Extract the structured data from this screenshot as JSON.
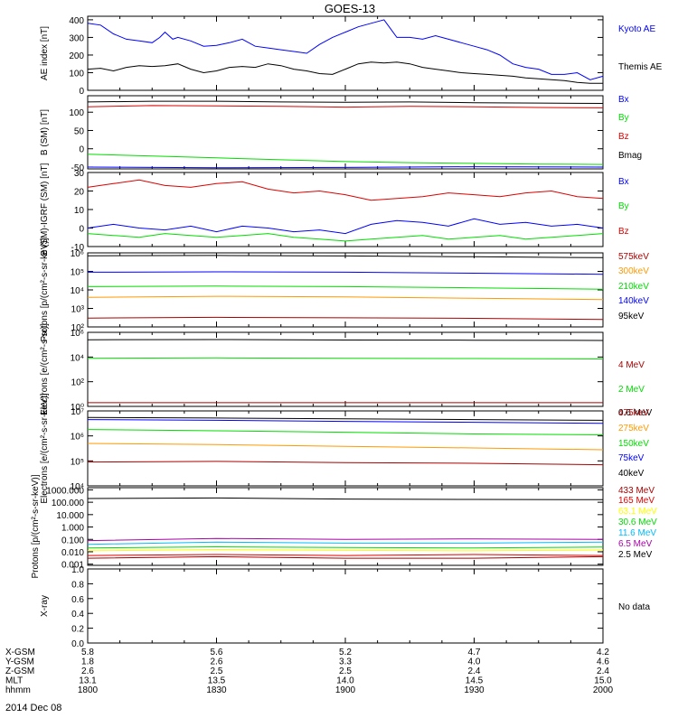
{
  "title": "GOES-13",
  "date_label": "2014 Dec 08",
  "colors": {
    "black": "#000000",
    "blue": "#0000ff",
    "green": "#00dd00",
    "red": "#dd0000",
    "orange": "#ff9900",
    "darkred": "#aa0000",
    "cyan": "#00bbff",
    "purple": "#aa00aa",
    "yellow": "#ffff00"
  },
  "ephemeris": {
    "rows": [
      {
        "label": "X-GSM",
        "values": [
          "5.8",
          "5.6",
          "5.2",
          "4.7",
          "4.2"
        ]
      },
      {
        "label": "Y-GSM",
        "values": [
          "1.8",
          "2.6",
          "3.3",
          "4.0",
          "4.6"
        ]
      },
      {
        "label": "Z-GSM",
        "values": [
          "2.6",
          "2.5",
          "2.5",
          "2.4",
          "2.4"
        ]
      },
      {
        "label": "MLT",
        "values": [
          "13.1",
          "13.5",
          "14.0",
          "14.5",
          "15.0"
        ]
      },
      {
        "label": "hhmm",
        "values": [
          "1800",
          "1830",
          "1900",
          "1930",
          "2000"
        ]
      }
    ]
  },
  "chart_data": [
    {
      "type": "line",
      "ylabel": "AE index [nT]",
      "ylim": [
        0,
        420
      ],
      "yticks": [
        "0",
        "100",
        "200",
        "300",
        "400"
      ],
      "ytick_values": [
        0,
        100,
        200,
        300,
        400
      ],
      "xlim": [
        1800,
        2000
      ],
      "series": [
        {
          "name": "Kyoto AE",
          "color": "blue",
          "x": [
            1800,
            1805,
            1810,
            1815,
            1820,
            1825,
            1828,
            1830,
            1833,
            1835,
            1840,
            1845,
            1850,
            1855,
            1860,
            1865,
            1870,
            1875,
            1880,
            1885,
            1890,
            1895,
            1900,
            1905,
            1910,
            1915,
            1918,
            1920,
            1925,
            1930,
            1935,
            1940,
            1945,
            1950,
            1955,
            1960,
            1965,
            1970,
            1975,
            1980,
            1985,
            1990,
            1995,
            2000
          ],
          "y": [
            380,
            370,
            320,
            290,
            280,
            270,
            300,
            330,
            290,
            300,
            280,
            250,
            255,
            270,
            290,
            250,
            240,
            230,
            220,
            210,
            260,
            300,
            330,
            360,
            380,
            400,
            340,
            300,
            300,
            290,
            310,
            290,
            270,
            250,
            230,
            200,
            150,
            130,
            120,
            90,
            90,
            100,
            60,
            80
          ]
        },
        {
          "name": "Themis AE",
          "color": "black",
          "x": [
            1800,
            1805,
            1810,
            1815,
            1820,
            1825,
            1830,
            1835,
            1840,
            1845,
            1850,
            1855,
            1860,
            1865,
            1870,
            1875,
            1880,
            1885,
            1890,
            1895,
            1900,
            1905,
            1910,
            1915,
            1920,
            1925,
            1930,
            1935,
            1940,
            1945,
            1950,
            1955,
            1960,
            1965,
            1970,
            1975,
            1980,
            1985,
            1990,
            1995,
            2000
          ],
          "y": [
            120,
            125,
            110,
            130,
            140,
            135,
            140,
            150,
            120,
            100,
            110,
            130,
            135,
            130,
            150,
            140,
            120,
            110,
            95,
            90,
            120,
            150,
            160,
            155,
            160,
            150,
            130,
            120,
            110,
            100,
            95,
            90,
            85,
            80,
            70,
            65,
            60,
            55,
            45,
            40,
            40
          ]
        }
      ]
    },
    {
      "type": "line",
      "ylabel": "B (SM) [nT]",
      "ylim": [
        -55,
        145
      ],
      "yticks": [
        "-50",
        "0",
        "50",
        "100"
      ],
      "ytick_values": [
        -50,
        0,
        50,
        100
      ],
      "xlim": [
        1800,
        2000
      ],
      "series": [
        {
          "name": "Bx",
          "color": "blue",
          "x": [
            1800,
            1850,
            1900,
            1950,
            2000
          ],
          "y": [
            -50,
            -52,
            -51,
            -49,
            -50
          ]
        },
        {
          "name": "By",
          "color": "green",
          "x": [
            1800,
            1825,
            1850,
            1875,
            1900,
            1925,
            1950,
            1975,
            2000
          ],
          "y": [
            -15,
            -20,
            -25,
            -30,
            -35,
            -38,
            -40,
            -42,
            -43
          ]
        },
        {
          "name": "Bz",
          "color": "red",
          "x": [
            1800,
            1825,
            1850,
            1875,
            1900,
            1925,
            1950,
            1975,
            2000
          ],
          "y": [
            115,
            118,
            117,
            116,
            114,
            116,
            115,
            113,
            112
          ]
        },
        {
          "name": "Bmag",
          "color": "black",
          "x": [
            1800,
            1825,
            1850,
            1875,
            1900,
            1925,
            1950,
            1975,
            2000
          ],
          "y": [
            128,
            130,
            130,
            128,
            127,
            128,
            126,
            125,
            124
          ]
        }
      ]
    },
    {
      "type": "line",
      "ylabel": "B (SM)-IGRF (SM) [nT]",
      "ylim": [
        -10,
        30
      ],
      "yticks": [
        "-10",
        "0",
        "10",
        "20",
        "30"
      ],
      "ytick_values": [
        -10,
        0,
        10,
        20,
        30
      ],
      "xlim": [
        1800,
        2000
      ],
      "series": [
        {
          "name": "Bx",
          "color": "blue",
          "x": [
            1800,
            1810,
            1820,
            1830,
            1840,
            1850,
            1860,
            1870,
            1880,
            1890,
            1900,
            1910,
            1920,
            1930,
            1940,
            1950,
            1960,
            1970,
            1980,
            1990,
            2000
          ],
          "y": [
            0,
            2,
            0,
            -1,
            1,
            -2,
            1,
            0,
            -2,
            -1,
            -3,
            2,
            4,
            3,
            1,
            5,
            2,
            3,
            1,
            2,
            0
          ]
        },
        {
          "name": "By",
          "color": "green",
          "x": [
            1800,
            1810,
            1820,
            1830,
            1840,
            1850,
            1860,
            1870,
            1880,
            1890,
            1900,
            1910,
            1920,
            1930,
            1940,
            1950,
            1960,
            1970,
            1980,
            1990,
            2000
          ],
          "y": [
            -3,
            -4,
            -5,
            -3,
            -4,
            -5,
            -4,
            -3,
            -5,
            -6,
            -7,
            -6,
            -5,
            -4,
            -6,
            -5,
            -4,
            -6,
            -5,
            -4,
            -3
          ]
        },
        {
          "name": "Bz",
          "color": "red",
          "x": [
            1800,
            1810,
            1820,
            1830,
            1840,
            1850,
            1860,
            1870,
            1880,
            1890,
            1900,
            1910,
            1920,
            1930,
            1940,
            1950,
            1960,
            1970,
            1980,
            1990,
            2000
          ],
          "y": [
            22,
            24,
            26,
            23,
            22,
            24,
            25,
            21,
            19,
            20,
            18,
            15,
            16,
            17,
            19,
            18,
            17,
            19,
            20,
            17,
            16
          ]
        }
      ]
    },
    {
      "type": "line",
      "ylabel": "Protons [p/(cm²-s-sr-keV)]",
      "yscale": "log",
      "ylim": [
        100,
        1000000
      ],
      "yticks": [
        "10²",
        "10³",
        "10⁴",
        "10⁵",
        "10⁶"
      ],
      "ytick_values": [
        100,
        1000,
        10000,
        100000,
        1000000
      ],
      "xlim": [
        1800,
        2000
      ],
      "series": [
        {
          "name": "575keV",
          "color": "darkred",
          "x": [
            1800,
            1850,
            1900,
            1950,
            2000
          ],
          "y": [
            300,
            330,
            310,
            290,
            250
          ]
        },
        {
          "name": "300keV",
          "color": "orange",
          "x": [
            1800,
            1850,
            1900,
            1950,
            2000
          ],
          "y": [
            4000,
            4500,
            4200,
            3500,
            3000
          ]
        },
        {
          "name": "210keV",
          "color": "green",
          "x": [
            1800,
            1850,
            1900,
            1950,
            2000
          ],
          "y": [
            15000,
            16000,
            15000,
            13000,
            11000
          ]
        },
        {
          "name": "140keV",
          "color": "blue",
          "x": [
            1800,
            1850,
            1900,
            1950,
            2000
          ],
          "y": [
            90000,
            95000,
            90000,
            80000,
            70000
          ]
        },
        {
          "name": "95keV",
          "color": "black",
          "x": [
            1800,
            1850,
            1900,
            1950,
            2000
          ],
          "y": [
            700000,
            720000,
            680000,
            620000,
            550000
          ]
        }
      ]
    },
    {
      "type": "line",
      "ylabel": "Electrons [e/(cm²-s-sr)]",
      "yscale": "log",
      "ylim": [
        1,
        1000000
      ],
      "yticks": [
        "10⁰",
        "10²",
        "10⁴",
        "10⁶"
      ],
      "ytick_values": [
        1,
        100,
        10000,
        1000000
      ],
      "xlim": [
        1800,
        2000
      ],
      "series": [
        {
          "name": "4 MeV",
          "color": "darkred",
          "x": [
            1800,
            1850,
            1900,
            1950,
            2000
          ],
          "y": [
            2,
            2,
            2,
            2,
            2
          ]
        },
        {
          "name": "2 MeV",
          "color": "green",
          "x": [
            1800,
            1850,
            1900,
            1950,
            2000
          ],
          "y": [
            8000,
            8500,
            8000,
            7500,
            7000
          ]
        },
        {
          "name": "0.6 MeV",
          "color": "black",
          "x": [
            1800,
            1850,
            1900,
            1950,
            2000
          ],
          "y": [
            250000,
            260000,
            240000,
            230000,
            220000
          ]
        }
      ]
    },
    {
      "type": "line",
      "ylabel": "Electrons [e/(cm²-s-sr-keV)]",
      "yscale": "log",
      "ylim": [
        10000,
        10000000
      ],
      "yticks": [
        "10⁴",
        "10⁵",
        "10⁶",
        "10⁷"
      ],
      "ytick_values": [
        10000,
        100000,
        1000000,
        10000000
      ],
      "xlim": [
        1800,
        2000
      ],
      "series": [
        {
          "name": "475keV",
          "color": "darkred",
          "x": [
            1800,
            1850,
            1900,
            1950,
            2000
          ],
          "y": [
            90000,
            95000,
            85000,
            80000,
            70000
          ]
        },
        {
          "name": "275keV",
          "color": "orange",
          "x": [
            1800,
            1850,
            1900,
            1950,
            2000
          ],
          "y": [
            500000,
            450000,
            380000,
            330000,
            280000
          ]
        },
        {
          "name": "150keV",
          "color": "green",
          "x": [
            1800,
            1850,
            1900,
            1950,
            2000
          ],
          "y": [
            1800000,
            1600000,
            1400000,
            1200000,
            1100000
          ]
        },
        {
          "name": "75keV",
          "color": "blue",
          "x": [
            1800,
            1850,
            1900,
            1950,
            2000
          ],
          "y": [
            4500000,
            4200000,
            3800000,
            3500000,
            3200000
          ]
        },
        {
          "name": "40keV",
          "color": "black",
          "x": [
            1800,
            1850,
            1900,
            1950,
            2000
          ],
          "y": [
            5500000,
            5200000,
            4800000,
            4500000,
            4200000
          ]
        }
      ]
    },
    {
      "type": "line",
      "ylabel": "Protons [p/(cm²-s-sr-keV)]",
      "yscale": "log",
      "ylim": [
        0.0008,
        1500
      ],
      "yticks": [
        "0.001",
        "0.010",
        "0.100",
        "1.000",
        "10.000",
        "100.000",
        "1000.000"
      ],
      "ytick_values": [
        0.001,
        0.01,
        0.1,
        1,
        10,
        100,
        1000
      ],
      "xlim": [
        1800,
        2000
      ],
      "series": [
        {
          "name": "433 MeV",
          "color": "darkred",
          "x": [
            1800,
            1850,
            1900,
            1950,
            2000
          ],
          "y": [
            0.003,
            0.004,
            0.003,
            0.003,
            0.004
          ]
        },
        {
          "name": "165 MeV",
          "color": "red",
          "x": [
            1800,
            1850,
            1900,
            1950,
            2000
          ],
          "y": [
            0.005,
            0.006,
            0.005,
            0.006,
            0.005
          ]
        },
        {
          "name": "63.1 MeV",
          "color": "yellow",
          "x": [
            1800,
            1850,
            1900,
            1950,
            2000
          ],
          "y": [
            0.012,
            0.015,
            0.013,
            0.012,
            0.014
          ]
        },
        {
          "name": "30.6 MeV",
          "color": "green",
          "x": [
            1800,
            1850,
            1900,
            1950,
            2000
          ],
          "y": [
            0.02,
            0.025,
            0.022,
            0.02,
            0.024
          ]
        },
        {
          "name": "11.6 MeV",
          "color": "cyan",
          "x": [
            1800,
            1850,
            1900,
            1950,
            2000
          ],
          "y": [
            0.04,
            0.06,
            0.05,
            0.05,
            0.06
          ]
        },
        {
          "name": "6.5 MeV",
          "color": "purple",
          "x": [
            1800,
            1850,
            1900,
            1950,
            2000
          ],
          "y": [
            0.08,
            0.12,
            0.1,
            0.11,
            0.1
          ]
        },
        {
          "name": "2.5 MeV",
          "color": "black",
          "x": [
            1800,
            1850,
            1900,
            1950,
            2000
          ],
          "y": [
            200,
            220,
            180,
            170,
            160
          ]
        }
      ]
    },
    {
      "type": "line",
      "ylabel": "X-ray",
      "ylim": [
        0,
        1
      ],
      "yticks": [
        "0.0",
        "0.2",
        "0.4",
        "0.6",
        "0.8",
        "1.0"
      ],
      "ytick_values": [
        0,
        0.2,
        0.4,
        0.6,
        0.8,
        1.0
      ],
      "xlim": [
        1800,
        2000
      ],
      "note": "No data",
      "series": []
    }
  ]
}
